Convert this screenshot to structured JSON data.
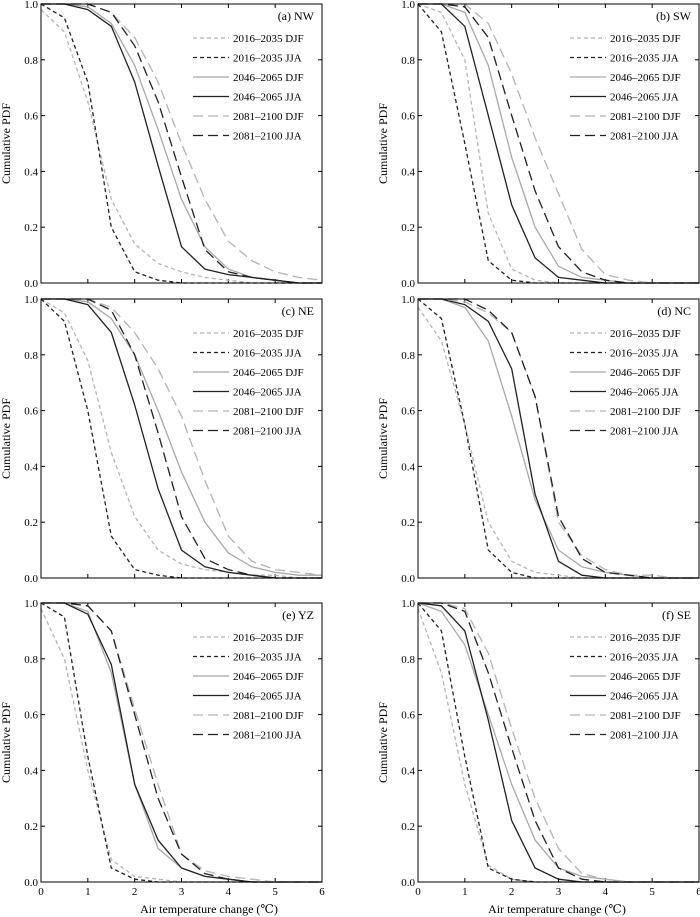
{
  "figure": {
    "xlabel": "Air temperature change (℃)",
    "ylabel": "Cumulative PDF"
  },
  "legend_entries": [
    {
      "label": "2016–2035  DJF",
      "color": "#b4b4b4",
      "dash": "short"
    },
    {
      "label": "2016–2035  JJA",
      "color": "#222222",
      "dash": "short"
    },
    {
      "label": "2046–2065  DJF",
      "color": "#a8a8a8",
      "dash": "solid"
    },
    {
      "label": "2046–2065  JJA",
      "color": "#222222",
      "dash": "solid"
    },
    {
      "label": "2081–2100  DJF",
      "color": "#b4b4b4",
      "dash": "long"
    },
    {
      "label": "2081–2100  JJA",
      "color": "#222222",
      "dash": "long"
    }
  ],
  "chart_data": [
    {
      "panel": "(a)  NW",
      "type": "line",
      "xlim": [
        0,
        6
      ],
      "ylim": [
        0,
        1
      ],
      "xticks": [
        "0",
        "1",
        "2",
        "3",
        "4",
        "5",
        "6"
      ],
      "yticks": [
        "0.0",
        "0.2",
        "0.4",
        "0.6",
        "0.8",
        "1.0"
      ],
      "x": [
        0,
        0.5,
        1,
        1.5,
        2,
        2.5,
        3,
        3.5,
        4,
        4.5,
        5,
        5.5,
        6
      ],
      "series": [
        {
          "name": "2016–2035  DJF",
          "values": [
            0.98,
            0.9,
            0.65,
            0.3,
            0.14,
            0.07,
            0.04,
            0.02,
            0.01,
            0.0,
            0.0,
            0.0,
            0.0
          ]
        },
        {
          "name": "2016–2035  JJA",
          "values": [
            1.0,
            0.95,
            0.72,
            0.2,
            0.04,
            0.01,
            0.0,
            0.0,
            0.0,
            0.0,
            0.0,
            0.0,
            0.0
          ]
        },
        {
          "name": "2046–2065  DJF",
          "values": [
            1.0,
            1.0,
            0.99,
            0.93,
            0.78,
            0.55,
            0.3,
            0.13,
            0.05,
            0.02,
            0.01,
            0.0,
            0.0
          ]
        },
        {
          "name": "2046–2065  JJA",
          "values": [
            1.0,
            1.0,
            0.98,
            0.92,
            0.72,
            0.42,
            0.13,
            0.05,
            0.03,
            0.02,
            0.01,
            0.0,
            0.0
          ]
        },
        {
          "name": "2081–2100  DJF",
          "values": [
            1.0,
            1.0,
            1.0,
            0.97,
            0.88,
            0.72,
            0.5,
            0.3,
            0.15,
            0.08,
            0.04,
            0.02,
            0.01
          ]
        },
        {
          "name": "2081–2100  JJA",
          "values": [
            1.0,
            1.0,
            1.0,
            0.97,
            0.85,
            0.65,
            0.38,
            0.12,
            0.04,
            0.02,
            0.01,
            0.0,
            0.0
          ]
        }
      ]
    },
    {
      "panel": "(b)  SW",
      "type": "line",
      "xlim": [
        0,
        6
      ],
      "ylim": [
        0,
        1
      ],
      "xticks": [
        "0",
        "1",
        "2",
        "3",
        "4",
        "5",
        "6"
      ],
      "yticks": [
        "0.0",
        "0.2",
        "0.4",
        "0.6",
        "0.8",
        "1.0"
      ],
      "x": [
        0,
        0.5,
        1,
        1.5,
        2,
        2.5,
        3,
        3.5,
        4,
        4.5,
        5,
        5.5,
        6
      ],
      "series": [
        {
          "name": "2016–2035  DJF",
          "values": [
            1.0,
            0.97,
            0.8,
            0.25,
            0.05,
            0.01,
            0.0,
            0.0,
            0.0,
            0.0,
            0.0,
            0.0,
            0.0
          ]
        },
        {
          "name": "2016–2035  JJA",
          "values": [
            1.0,
            0.9,
            0.5,
            0.08,
            0.01,
            0.0,
            0.0,
            0.0,
            0.0,
            0.0,
            0.0,
            0.0,
            0.0
          ]
        },
        {
          "name": "2046–2065  DJF",
          "values": [
            1.0,
            1.0,
            0.97,
            0.78,
            0.45,
            0.2,
            0.06,
            0.02,
            0.01,
            0.0,
            0.0,
            0.0,
            0.0
          ]
        },
        {
          "name": "2046–2065  JJA",
          "values": [
            1.0,
            1.0,
            0.92,
            0.6,
            0.28,
            0.09,
            0.02,
            0.01,
            0.0,
            0.0,
            0.0,
            0.0,
            0.0
          ]
        },
        {
          "name": "2081–2100  DJF",
          "values": [
            1.0,
            1.0,
            1.0,
            0.93,
            0.75,
            0.52,
            0.32,
            0.12,
            0.03,
            0.01,
            0.0,
            0.0,
            0.0
          ]
        },
        {
          "name": "2081–2100  JJA",
          "values": [
            1.0,
            1.0,
            0.99,
            0.88,
            0.6,
            0.33,
            0.13,
            0.04,
            0.01,
            0.0,
            0.0,
            0.0,
            0.0
          ]
        }
      ]
    },
    {
      "panel": "(c)  NE",
      "type": "line",
      "xlim": [
        0,
        6
      ],
      "ylim": [
        0,
        1
      ],
      "xticks": [
        "0",
        "1",
        "2",
        "3",
        "4",
        "5",
        "6"
      ],
      "yticks": [
        "0.0",
        "0.2",
        "0.4",
        "0.6",
        "0.8",
        "1.0"
      ],
      "x": [
        0,
        0.5,
        1,
        1.5,
        2,
        2.5,
        3,
        3.5,
        4,
        4.5,
        5,
        5.5,
        6
      ],
      "series": [
        {
          "name": "2016–2035  DJF",
          "values": [
            1.0,
            0.95,
            0.78,
            0.45,
            0.22,
            0.1,
            0.05,
            0.03,
            0.02,
            0.01,
            0.01,
            0.0,
            0.0
          ]
        },
        {
          "name": "2016–2035  JJA",
          "values": [
            1.0,
            0.92,
            0.6,
            0.15,
            0.03,
            0.01,
            0.0,
            0.0,
            0.0,
            0.0,
            0.0,
            0.0,
            0.0
          ]
        },
        {
          "name": "2046–2065  DJF",
          "values": [
            1.0,
            1.0,
            0.99,
            0.93,
            0.8,
            0.6,
            0.38,
            0.2,
            0.09,
            0.04,
            0.02,
            0.01,
            0.01
          ]
        },
        {
          "name": "2046–2065  JJA",
          "values": [
            1.0,
            1.0,
            0.98,
            0.88,
            0.62,
            0.32,
            0.1,
            0.04,
            0.02,
            0.01,
            0.0,
            0.0,
            0.0
          ]
        },
        {
          "name": "2081–2100  DJF",
          "values": [
            1.0,
            1.0,
            1.0,
            0.97,
            0.88,
            0.75,
            0.58,
            0.35,
            0.15,
            0.06,
            0.03,
            0.02,
            0.01
          ]
        },
        {
          "name": "2081–2100  JJA",
          "values": [
            1.0,
            1.0,
            1.0,
            0.96,
            0.8,
            0.52,
            0.22,
            0.07,
            0.03,
            0.01,
            0.0,
            0.0,
            0.0
          ]
        }
      ]
    },
    {
      "panel": "(d)  NC",
      "type": "line",
      "xlim": [
        0,
        6
      ],
      "ylim": [
        0,
        1
      ],
      "xticks": [
        "0",
        "1",
        "2",
        "3",
        "4",
        "5",
        "6"
      ],
      "yticks": [
        "0.0",
        "0.2",
        "0.4",
        "0.6",
        "0.8",
        "1.0"
      ],
      "x": [
        0,
        0.5,
        1,
        1.5,
        2,
        2.5,
        3,
        3.5,
        4,
        4.5,
        5,
        5.5,
        6
      ],
      "series": [
        {
          "name": "2016–2035  DJF",
          "values": [
            0.97,
            0.85,
            0.55,
            0.2,
            0.06,
            0.02,
            0.01,
            0.0,
            0.0,
            0.0,
            0.0,
            0.0,
            0.0
          ]
        },
        {
          "name": "2016–2035  JJA",
          "values": [
            1.0,
            0.93,
            0.55,
            0.1,
            0.02,
            0.0,
            0.0,
            0.0,
            0.0,
            0.0,
            0.0,
            0.0,
            0.0
          ]
        },
        {
          "name": "2046–2065  DJF",
          "values": [
            1.0,
            1.0,
            0.97,
            0.85,
            0.58,
            0.28,
            0.1,
            0.04,
            0.02,
            0.01,
            0.0,
            0.0,
            0.0
          ]
        },
        {
          "name": "2046–2065  JJA",
          "values": [
            1.0,
            1.0,
            0.98,
            0.92,
            0.75,
            0.3,
            0.06,
            0.01,
            0.0,
            0.0,
            0.0,
            0.0,
            0.0
          ]
        },
        {
          "name": "2081–2100  DJF",
          "values": [
            1.0,
            1.0,
            0.99,
            0.95,
            0.88,
            0.65,
            0.2,
            0.08,
            0.03,
            0.01,
            0.01,
            0.0,
            0.0
          ]
        },
        {
          "name": "2081–2100  JJA",
          "values": [
            1.0,
            1.0,
            1.0,
            0.96,
            0.88,
            0.65,
            0.22,
            0.07,
            0.02,
            0.01,
            0.0,
            0.0,
            0.0
          ]
        }
      ]
    },
    {
      "panel": "(e)  YZ",
      "type": "line",
      "xlim": [
        0,
        6
      ],
      "ylim": [
        0,
        1
      ],
      "xticks": [
        "0",
        "1",
        "2",
        "3",
        "4",
        "5",
        "6"
      ],
      "yticks": [
        "0.0",
        "0.2",
        "0.4",
        "0.6",
        "0.8",
        "1.0"
      ],
      "x": [
        0,
        0.5,
        1,
        1.5,
        2,
        2.5,
        3,
        3.5,
        4,
        4.5,
        5,
        5.5,
        6
      ],
      "series": [
        {
          "name": "2016–2035  DJF",
          "values": [
            0.98,
            0.8,
            0.4,
            0.08,
            0.02,
            0.01,
            0.0,
            0.0,
            0.0,
            0.0,
            0.0,
            0.0,
            0.0
          ]
        },
        {
          "name": "2016–2035  JJA",
          "values": [
            1.0,
            0.95,
            0.45,
            0.05,
            0.01,
            0.0,
            0.0,
            0.0,
            0.0,
            0.0,
            0.0,
            0.0,
            0.0
          ]
        },
        {
          "name": "2046–2065  DJF",
          "values": [
            1.0,
            1.0,
            0.97,
            0.75,
            0.35,
            0.12,
            0.05,
            0.02,
            0.01,
            0.0,
            0.0,
            0.0,
            0.0
          ]
        },
        {
          "name": "2046–2065  JJA",
          "values": [
            1.0,
            1.0,
            0.96,
            0.78,
            0.35,
            0.15,
            0.05,
            0.02,
            0.01,
            0.0,
            0.0,
            0.0,
            0.0
          ]
        },
        {
          "name": "2081–2100  DJF",
          "values": [
            1.0,
            1.0,
            0.99,
            0.9,
            0.62,
            0.35,
            0.1,
            0.04,
            0.02,
            0.01,
            0.0,
            0.0,
            0.0
          ]
        },
        {
          "name": "2081–2100  JJA",
          "values": [
            1.0,
            1.0,
            0.99,
            0.9,
            0.6,
            0.3,
            0.1,
            0.03,
            0.01,
            0.0,
            0.0,
            0.0,
            0.0
          ]
        }
      ]
    },
    {
      "panel": "(f)  SE",
      "type": "line",
      "xlim": [
        0,
        6
      ],
      "ylim": [
        0,
        1
      ],
      "xticks": [
        "0",
        "1",
        "2",
        "3",
        "4",
        "5",
        "6"
      ],
      "yticks": [
        "0.0",
        "0.2",
        "0.4",
        "0.6",
        "0.8",
        "1.0"
      ],
      "x": [
        0,
        0.5,
        1,
        1.5,
        2,
        2.5,
        3,
        3.5,
        4,
        4.5,
        5,
        5.5,
        6
      ],
      "series": [
        {
          "name": "2016–2035  DJF",
          "values": [
            0.98,
            0.75,
            0.35,
            0.06,
            0.01,
            0.0,
            0.0,
            0.0,
            0.0,
            0.0,
            0.0,
            0.0,
            0.0
          ]
        },
        {
          "name": "2016–2035  JJA",
          "values": [
            1.0,
            0.9,
            0.45,
            0.05,
            0.01,
            0.0,
            0.0,
            0.0,
            0.0,
            0.0,
            0.0,
            0.0,
            0.0
          ]
        },
        {
          "name": "2046–2065  DJF",
          "values": [
            1.0,
            0.97,
            0.85,
            0.6,
            0.35,
            0.15,
            0.05,
            0.02,
            0.01,
            0.0,
            0.0,
            0.0,
            0.0
          ]
        },
        {
          "name": "2046–2065  JJA",
          "values": [
            1.0,
            0.99,
            0.9,
            0.58,
            0.22,
            0.05,
            0.01,
            0.0,
            0.0,
            0.0,
            0.0,
            0.0,
            0.0
          ]
        },
        {
          "name": "2081–2100  DJF",
          "values": [
            1.0,
            1.0,
            0.98,
            0.82,
            0.55,
            0.3,
            0.12,
            0.03,
            0.01,
            0.0,
            0.0,
            0.0,
            0.0
          ]
        },
        {
          "name": "2081–2100  JJA",
          "values": [
            1.0,
            1.0,
            0.97,
            0.75,
            0.48,
            0.22,
            0.05,
            0.01,
            0.0,
            0.0,
            0.0,
            0.0,
            0.0
          ]
        }
      ]
    }
  ]
}
